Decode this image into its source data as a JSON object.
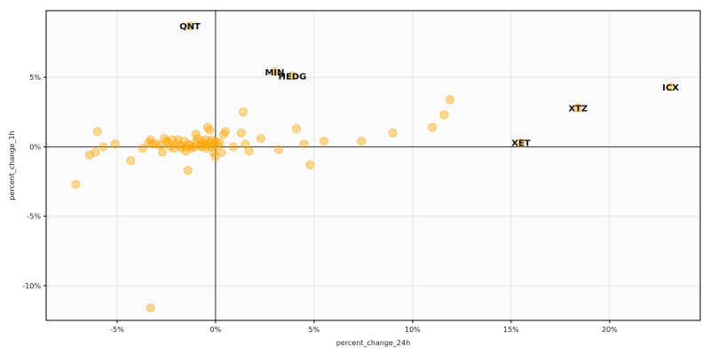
{
  "chart_data": {
    "type": "scatter",
    "xlabel": "percent_change_24h",
    "ylabel": "percent_change_1h",
    "xlim": [
      -0.086,
      0.246
    ],
    "ylim": [
      -0.125,
      0.098
    ],
    "xticks": [
      -0.05,
      0,
      0.05,
      0.1,
      0.15,
      0.2
    ],
    "yticks": [
      -0.1,
      -0.05,
      0,
      0.05
    ],
    "xtick_labels": [
      "-5%",
      "0%",
      "5%",
      "10%",
      "15%",
      "20%"
    ],
    "ytick_labels": [
      "-10%",
      "-5%",
      "0%",
      "5%"
    ],
    "grid": true,
    "zero_lines": true,
    "point_color": "#ffa500",
    "background_color": "#fbfbfb",
    "grid_color": "#e3e3e3",
    "labeled_points": [
      {
        "label": "QNT",
        "x": -0.013,
        "y": 0.087
      },
      {
        "label": "MIN",
        "x": 0.03,
        "y": 0.054
      },
      {
        "label": "HEDG",
        "x": 0.039,
        "y": 0.051
      },
      {
        "label": "ICX",
        "x": 0.231,
        "y": 0.043
      },
      {
        "label": "XTZ",
        "x": 0.184,
        "y": 0.028
      },
      {
        "label": "XET",
        "x": 0.155,
        "y": 0.003
      }
    ],
    "points": [
      [
        -0.071,
        -0.027
      ],
      [
        -0.064,
        -0.006
      ],
      [
        -0.061,
        -0.004
      ],
      [
        -0.06,
        0.011
      ],
      [
        -0.057,
        0.0
      ],
      [
        -0.051,
        0.002
      ],
      [
        -0.043,
        -0.01
      ],
      [
        -0.037,
        -0.001
      ],
      [
        -0.034,
        0.003
      ],
      [
        -0.033,
        0.005
      ],
      [
        -0.032,
        0.002
      ],
      [
        -0.03,
        0.002
      ],
      [
        -0.028,
        0.001
      ],
      [
        -0.027,
        -0.004
      ],
      [
        -0.026,
        0.006
      ],
      [
        -0.025,
        0.004
      ],
      [
        -0.024,
        0.003
      ],
      [
        -0.023,
        0.0
      ],
      [
        -0.022,
        0.005
      ],
      [
        -0.021,
        -0.001
      ],
      [
        -0.02,
        0.002
      ],
      [
        -0.019,
        0.005
      ],
      [
        -0.018,
        0.001
      ],
      [
        -0.017,
        -0.001
      ],
      [
        -0.016,
        0.004
      ],
      [
        -0.015,
        -0.003
      ],
      [
        -0.015,
        0.0
      ],
      [
        -0.014,
        0.002
      ],
      [
        -0.013,
        0.001
      ],
      [
        -0.012,
        -0.001
      ],
      [
        -0.011,
        0.0
      ],
      [
        -0.01,
        0.009
      ],
      [
        -0.01,
        0.003
      ],
      [
        -0.009,
        0.006
      ],
      [
        -0.008,
        0.001
      ],
      [
        -0.007,
        0.0
      ],
      [
        -0.007,
        0.004
      ],
      [
        -0.006,
        0.002
      ],
      [
        -0.005,
        0.005
      ],
      [
        -0.005,
        -0.001
      ],
      [
        -0.004,
        0.014
      ],
      [
        -0.004,
        0.001
      ],
      [
        -0.003,
        0.012
      ],
      [
        -0.003,
        0.003
      ],
      [
        -0.002,
        0.0
      ],
      [
        -0.002,
        0.005
      ],
      [
        -0.001,
        -0.004
      ],
      [
        -0.001,
        0.002
      ],
      [
        0.0,
        0.004
      ],
      [
        0.0,
        -0.007
      ],
      [
        0.001,
        0.001
      ],
      [
        0.002,
        0.003
      ],
      [
        0.003,
        -0.004
      ],
      [
        0.004,
        0.009
      ],
      [
        0.005,
        0.011
      ],
      [
        -0.014,
        -0.017
      ],
      [
        0.009,
        0.0
      ],
      [
        0.013,
        0.01
      ],
      [
        0.014,
        0.025
      ],
      [
        0.015,
        0.002
      ],
      [
        0.017,
        -0.003
      ],
      [
        0.023,
        0.006
      ],
      [
        0.032,
        -0.002
      ],
      [
        0.041,
        0.013
      ],
      [
        0.045,
        0.002
      ],
      [
        0.048,
        -0.013
      ],
      [
        0.055,
        0.004
      ],
      [
        0.074,
        0.004
      ],
      [
        0.09,
        0.01
      ],
      [
        0.11,
        0.014
      ],
      [
        0.116,
        0.023
      ],
      [
        0.119,
        0.034
      ],
      [
        -0.033,
        -0.116
      ],
      [
        -0.013,
        0.087
      ],
      [
        0.03,
        0.054
      ],
      [
        0.039,
        0.051
      ],
      [
        0.231,
        0.043
      ],
      [
        0.184,
        0.028
      ],
      [
        0.155,
        0.003
      ]
    ]
  }
}
